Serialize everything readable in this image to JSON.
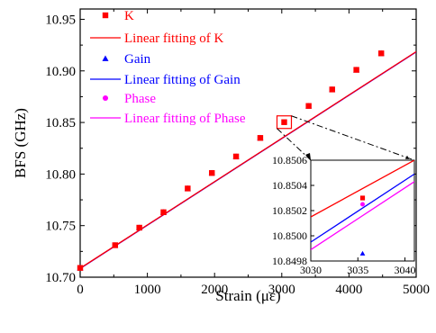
{
  "chart_data": [
    {
      "type": "scatter",
      "xlabel": "Strain (με)",
      "ylabel": "BFS (GHz)",
      "xlim": [
        0,
        5000
      ],
      "ylim": [
        10.7,
        10.96
      ],
      "x_ticks": [
        "0",
        "1000",
        "2000",
        "3000",
        "4000",
        "5000"
      ],
      "y_ticks": [
        "10.70",
        "10.75",
        "10.80",
        "10.85",
        "10.90",
        "10.95"
      ],
      "x": [
        0,
        520,
        880,
        1240,
        1600,
        1960,
        2320,
        2680,
        3036,
        3400,
        3750,
        4110,
        4480
      ],
      "series": [
        {
          "name": "K",
          "marker": "square",
          "color": "#ff0000",
          "values": [
            10.709,
            10.731,
            10.748,
            10.763,
            10.786,
            10.801,
            10.817,
            10.835,
            10.8503,
            10.866,
            10.882,
            10.901,
            10.917
          ]
        },
        {
          "name": "Gain",
          "marker": "triangle",
          "color": "#0000ff",
          "values": [
            10.709,
            10.731,
            10.748,
            10.763,
            10.786,
            10.801,
            10.817,
            10.835,
            10.84986,
            10.866,
            10.882,
            10.901,
            10.917
          ]
        },
        {
          "name": "Phase",
          "marker": "circle",
          "color": "#ff00ff",
          "values": [
            10.709,
            10.731,
            10.748,
            10.763,
            10.786,
            10.801,
            10.817,
            10.835,
            10.85025,
            10.866,
            10.882,
            10.901,
            10.917
          ]
        }
      ],
      "fits": [
        {
          "name": "Linear fitting of K",
          "color": "#ff0000",
          "x": [
            0,
            5000
          ],
          "y": [
            10.70865,
            10.91865
          ]
        },
        {
          "name": "Linear fitting of Gain",
          "color": "#0000ff",
          "x": [
            0,
            5000
          ],
          "y": [
            10.708457,
            10.918457
          ]
        },
        {
          "name": "Linear fitting of Phase",
          "color": "#ff00ff",
          "x": [
            0,
            5000
          ],
          "y": [
            10.708395,
            10.918395
          ]
        }
      ],
      "legend_position": "top-left"
    },
    {
      "type": "scatter",
      "inset": true,
      "xlim": [
        3030,
        3041
      ],
      "ylim": [
        10.8498,
        10.8506
      ],
      "x_ticks": [
        "3030",
        "3035",
        "3040"
      ],
      "y_ticks": [
        "10.8498",
        "10.8500",
        "10.8502",
        "10.8504",
        "10.8506"
      ],
      "points": [
        {
          "series": "K",
          "x": 3035.5,
          "y": 10.8503
        },
        {
          "series": "Gain",
          "x": 3035.5,
          "y": 10.84986
        },
        {
          "series": "Phase",
          "x": 3035.5,
          "y": 10.85025
        }
      ],
      "fits": [
        {
          "series": "K",
          "y_at_3030": 10.85015,
          "y_at_3041": 10.8506
        },
        {
          "series": "Gain",
          "y_at_3030": 10.84995,
          "y_at_3041": 10.85049
        },
        {
          "series": "Phase",
          "y_at_3030": 10.84989,
          "y_at_3041": 10.85043
        }
      ]
    }
  ]
}
